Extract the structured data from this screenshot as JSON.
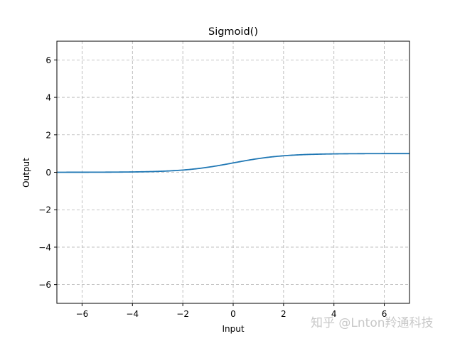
{
  "chart_data": {
    "type": "line",
    "title": "Sigmoid()",
    "xlabel": "Input",
    "ylabel": "Output",
    "xlim": [
      -7,
      7
    ],
    "ylim": [
      -7,
      7
    ],
    "grid": true,
    "grid_style": "dashed",
    "x_ticks": [
      -6,
      -4,
      -2,
      0,
      2,
      4,
      6
    ],
    "y_ticks": [
      -6,
      -4,
      -2,
      0,
      2,
      4,
      6
    ],
    "x_tick_labels": [
      "−6",
      "−4",
      "−2",
      "0",
      "2",
      "4",
      "6"
    ],
    "y_tick_labels": [
      "−6",
      "−4",
      "−2",
      "0",
      "2",
      "4",
      "6"
    ],
    "series": [
      {
        "name": "Sigmoid",
        "color": "#1f77b4",
        "function": "1/(1+exp(-x))",
        "x": [
          -7,
          -6,
          -5,
          -4,
          -3,
          -2,
          -1,
          0,
          1,
          2,
          3,
          4,
          5,
          6,
          7
        ],
        "y": [
          0.0009,
          0.0025,
          0.0067,
          0.018,
          0.047,
          0.119,
          0.269,
          0.5,
          0.731,
          0.881,
          0.953,
          0.982,
          0.993,
          0.998,
          0.999
        ]
      }
    ]
  },
  "watermark": "知乎 @Lnton羚通科技"
}
